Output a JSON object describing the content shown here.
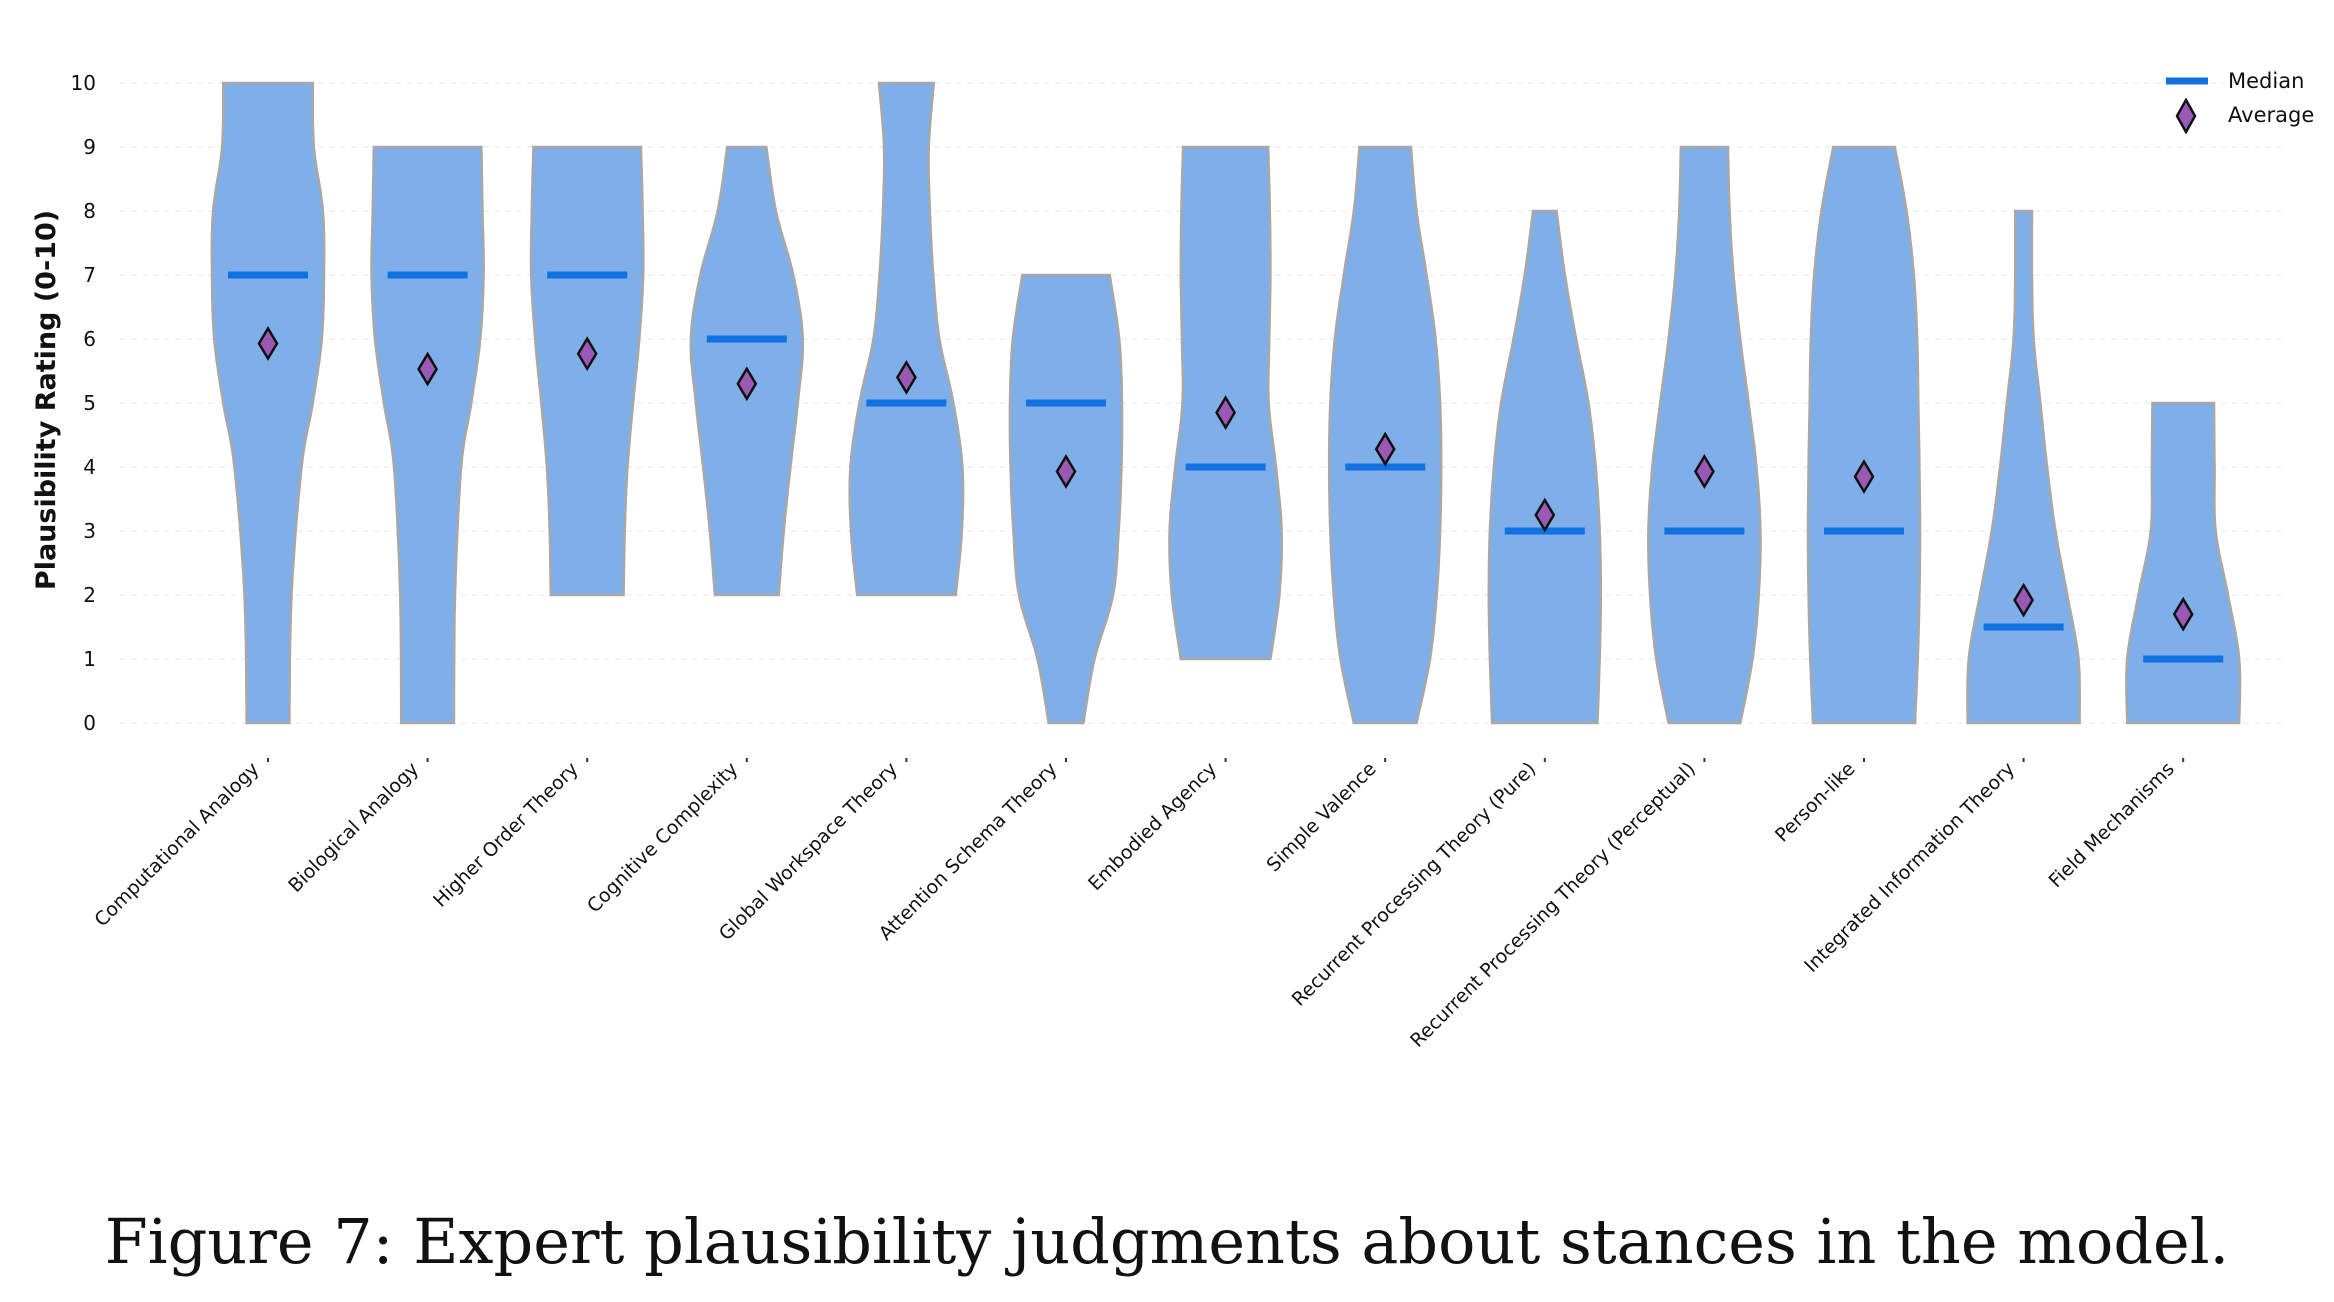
{
  "chart_data": {
    "type": "violin",
    "ylabel": "Plausibility Rating (0-10)",
    "xlabel": "",
    "ylim": [
      0,
      10
    ],
    "yticks": [
      0,
      1,
      2,
      3,
      4,
      5,
      6,
      7,
      8,
      9,
      10
    ],
    "grid": true,
    "legend_position": "top-right",
    "legend": {
      "median_label": "Median",
      "average_label": "Average"
    },
    "colors": {
      "violin_fill": "#7fafe8",
      "violin_edge": "#a8a8a8",
      "median": "#1171e0",
      "average_fill": "#9b59b6",
      "average_edge": "#111111"
    },
    "categories": [
      "Computational Analogy",
      "Biological Analogy",
      "Higher Order Theory",
      "Cognitive Complexity",
      "Global Workspace Theory",
      "Attention Schema Theory",
      "Embodied Agency",
      "Simple Valence",
      "Recurrent Processing Theory (Pure)",
      "Recurrent Processing Theory (Perceptual)",
      "Person-like",
      "Integrated Information Theory",
      "Field Mechanisms"
    ],
    "medians": [
      7,
      7,
      7,
      6,
      5,
      5,
      4,
      4,
      3,
      3,
      3,
      1.5,
      1
    ],
    "averages": [
      5.93,
      5.53,
      5.77,
      5.3,
      5.4,
      3.93,
      4.85,
      4.28,
      3.25,
      3.93,
      3.85,
      1.92,
      1.7
    ],
    "ranges": [
      [
        0,
        10
      ],
      [
        0,
        9
      ],
      [
        2,
        9
      ],
      [
        2,
        9
      ],
      [
        2,
        10
      ],
      [
        0,
        7
      ],
      [
        1,
        9
      ],
      [
        0,
        9
      ],
      [
        0,
        8
      ],
      [
        0,
        9
      ],
      [
        0,
        9
      ],
      [
        0,
        8
      ],
      [
        0,
        5
      ]
    ],
    "density_widths": [
      [
        [
          0,
          0.38
        ],
        [
          2,
          0.42
        ],
        [
          4,
          0.6
        ],
        [
          5,
          0.8
        ],
        [
          6,
          0.96
        ],
        [
          7,
          1.0
        ],
        [
          8,
          0.98
        ],
        [
          9,
          0.82
        ],
        [
          10,
          0.8
        ]
      ],
      [
        [
          0,
          0.47
        ],
        [
          2,
          0.49
        ],
        [
          4,
          0.6
        ],
        [
          5,
          0.78
        ],
        [
          6,
          0.94
        ],
        [
          7,
          1.0
        ],
        [
          8,
          0.98
        ],
        [
          9,
          0.96
        ]
      ],
      [
        [
          2,
          0.65
        ],
        [
          3,
          0.67
        ],
        [
          4,
          0.72
        ],
        [
          5,
          0.82
        ],
        [
          6,
          0.93
        ],
        [
          7,
          1.0
        ],
        [
          8,
          0.99
        ],
        [
          9,
          0.96
        ]
      ],
      [
        [
          2,
          0.57
        ],
        [
          3,
          0.66
        ],
        [
          4,
          0.78
        ],
        [
          5,
          0.91
        ],
        [
          6,
          1.0
        ],
        [
          7,
          0.83
        ],
        [
          8,
          0.52
        ],
        [
          9,
          0.35
        ]
      ],
      [
        [
          2,
          0.88
        ],
        [
          3,
          0.99
        ],
        [
          4,
          1.0
        ],
        [
          5,
          0.84
        ],
        [
          6,
          0.59
        ],
        [
          7,
          0.48
        ],
        [
          8,
          0.42
        ],
        [
          9,
          0.4
        ],
        [
          10,
          0.49
        ]
      ],
      [
        [
          0,
          0.31
        ],
        [
          1,
          0.51
        ],
        [
          2,
          0.84
        ],
        [
          3,
          0.94
        ],
        [
          4,
          0.99
        ],
        [
          5,
          1.0
        ],
        [
          6,
          0.95
        ],
        [
          7,
          0.78
        ]
      ],
      [
        [
          1,
          0.8
        ],
        [
          2,
          0.96
        ],
        [
          3,
          1.0
        ],
        [
          4,
          0.9
        ],
        [
          5,
          0.77
        ],
        [
          6,
          0.78
        ],
        [
          7,
          0.8
        ],
        [
          8,
          0.79
        ],
        [
          9,
          0.76
        ]
      ],
      [
        [
          0,
          0.56
        ],
        [
          1,
          0.8
        ],
        [
          2,
          0.92
        ],
        [
          3,
          0.98
        ],
        [
          4,
          1.0
        ],
        [
          5,
          0.98
        ],
        [
          6,
          0.9
        ],
        [
          7,
          0.74
        ],
        [
          8,
          0.56
        ],
        [
          9,
          0.46
        ]
      ],
      [
        [
          0,
          0.94
        ],
        [
          1,
          0.98
        ],
        [
          2,
          1.0
        ],
        [
          3,
          0.98
        ],
        [
          4,
          0.91
        ],
        [
          5,
          0.78
        ],
        [
          6,
          0.56
        ],
        [
          7,
          0.36
        ],
        [
          8,
          0.21
        ]
      ],
      [
        [
          0,
          0.64
        ],
        [
          1,
          0.86
        ],
        [
          2,
          0.97
        ],
        [
          3,
          1.0
        ],
        [
          4,
          0.93
        ],
        [
          5,
          0.79
        ],
        [
          6,
          0.64
        ],
        [
          7,
          0.52
        ],
        [
          8,
          0.45
        ],
        [
          9,
          0.42
        ]
      ],
      [
        [
          0,
          0.91
        ],
        [
          1,
          0.96
        ],
        [
          2,
          0.99
        ],
        [
          3,
          1.0
        ],
        [
          4,
          0.99
        ],
        [
          5,
          0.97
        ],
        [
          6,
          0.95
        ],
        [
          7,
          0.89
        ],
        [
          8,
          0.76
        ],
        [
          9,
          0.55
        ]
      ],
      [
        [
          0,
          1.0
        ],
        [
          1,
          0.98
        ],
        [
          2,
          0.78
        ],
        [
          3,
          0.57
        ],
        [
          4,
          0.42
        ],
        [
          5,
          0.3
        ],
        [
          6,
          0.18
        ],
        [
          7,
          0.15
        ],
        [
          8,
          0.15
        ]
      ],
      [
        [
          0,
          1.0
        ],
        [
          1,
          1.0
        ],
        [
          2,
          0.8
        ],
        [
          3,
          0.58
        ],
        [
          4,
          0.56
        ],
        [
          5,
          0.55
        ]
      ]
    ]
  },
  "caption": {
    "text": "Figure 7: Expert plausibility judgments about stances in the model."
  }
}
